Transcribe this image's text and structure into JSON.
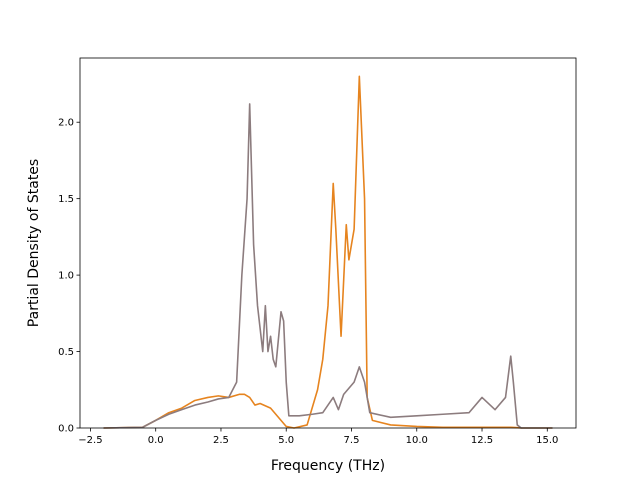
{
  "chart_data": {
    "type": "line",
    "title": "",
    "xlabel": "Frequency (THz)",
    "ylabel": "Partial Density of States",
    "xlim": [
      -2.9,
      16.1
    ],
    "ylim": [
      0.0,
      2.42
    ],
    "xticks": [
      -2.5,
      0.0,
      2.5,
      5.0,
      7.5,
      10.0,
      12.5,
      15.0
    ],
    "xtick_labels": [
      "−2.5",
      "0.0",
      "2.5",
      "5.0",
      "7.5",
      "10.0",
      "12.5",
      "15.0"
    ],
    "yticks": [
      0.0,
      0.5,
      1.0,
      1.5,
      2.0
    ],
    "ytick_labels": [
      "0.0",
      "0.5",
      "1.0",
      "1.5",
      "2.0"
    ],
    "grid": false,
    "legend": "none",
    "series": [
      {
        "color": "#e6841f",
        "x": [
          -2.0,
          -0.5,
          0.0,
          0.5,
          1.0,
          1.5,
          2.0,
          2.4,
          2.8,
          3.2,
          3.4,
          3.6,
          3.8,
          4.0,
          4.4,
          4.8,
          5.0,
          5.3,
          5.8,
          6.2,
          6.4,
          6.6,
          6.8,
          6.9,
          7.1,
          7.3,
          7.4,
          7.5,
          7.6,
          7.8,
          8.0,
          8.1,
          8.3,
          9.0,
          10.0,
          11.0,
          12.0,
          13.0,
          13.6,
          13.8,
          14.0,
          15.2
        ],
        "y": [
          0.0,
          0.005,
          0.05,
          0.1,
          0.13,
          0.18,
          0.2,
          0.21,
          0.2,
          0.22,
          0.22,
          0.2,
          0.15,
          0.16,
          0.13,
          0.05,
          0.01,
          0.0,
          0.02,
          0.25,
          0.45,
          0.8,
          1.6,
          1.3,
          0.6,
          1.33,
          1.1,
          1.2,
          1.3,
          2.3,
          1.5,
          0.2,
          0.05,
          0.02,
          0.01,
          0.005,
          0.005,
          0.005,
          0.005,
          0.003,
          0.0,
          0.0
        ]
      },
      {
        "color": "#8c7c7e",
        "x": [
          -2.0,
          -0.5,
          0.0,
          0.5,
          1.0,
          1.5,
          2.0,
          2.4,
          2.8,
          3.1,
          3.3,
          3.5,
          3.6,
          3.75,
          3.9,
          4.1,
          4.2,
          4.3,
          4.4,
          4.5,
          4.6,
          4.8,
          4.9,
          5.0,
          5.1,
          5.5,
          6.0,
          6.4,
          6.8,
          7.0,
          7.2,
          7.6,
          7.8,
          8.0,
          8.2,
          9.0,
          10.0,
          11.0,
          12.0,
          12.5,
          13.0,
          13.4,
          13.6,
          13.7,
          13.85,
          14.0,
          15.2
        ],
        "y": [
          0.0,
          0.005,
          0.05,
          0.09,
          0.12,
          0.15,
          0.17,
          0.19,
          0.2,
          0.3,
          1.0,
          1.5,
          2.12,
          1.2,
          0.8,
          0.5,
          0.8,
          0.5,
          0.6,
          0.45,
          0.4,
          0.76,
          0.7,
          0.3,
          0.08,
          0.08,
          0.09,
          0.1,
          0.2,
          0.12,
          0.22,
          0.3,
          0.4,
          0.3,
          0.1,
          0.07,
          0.08,
          0.09,
          0.1,
          0.2,
          0.12,
          0.2,
          0.47,
          0.3,
          0.02,
          0.0,
          0.0
        ]
      }
    ]
  }
}
